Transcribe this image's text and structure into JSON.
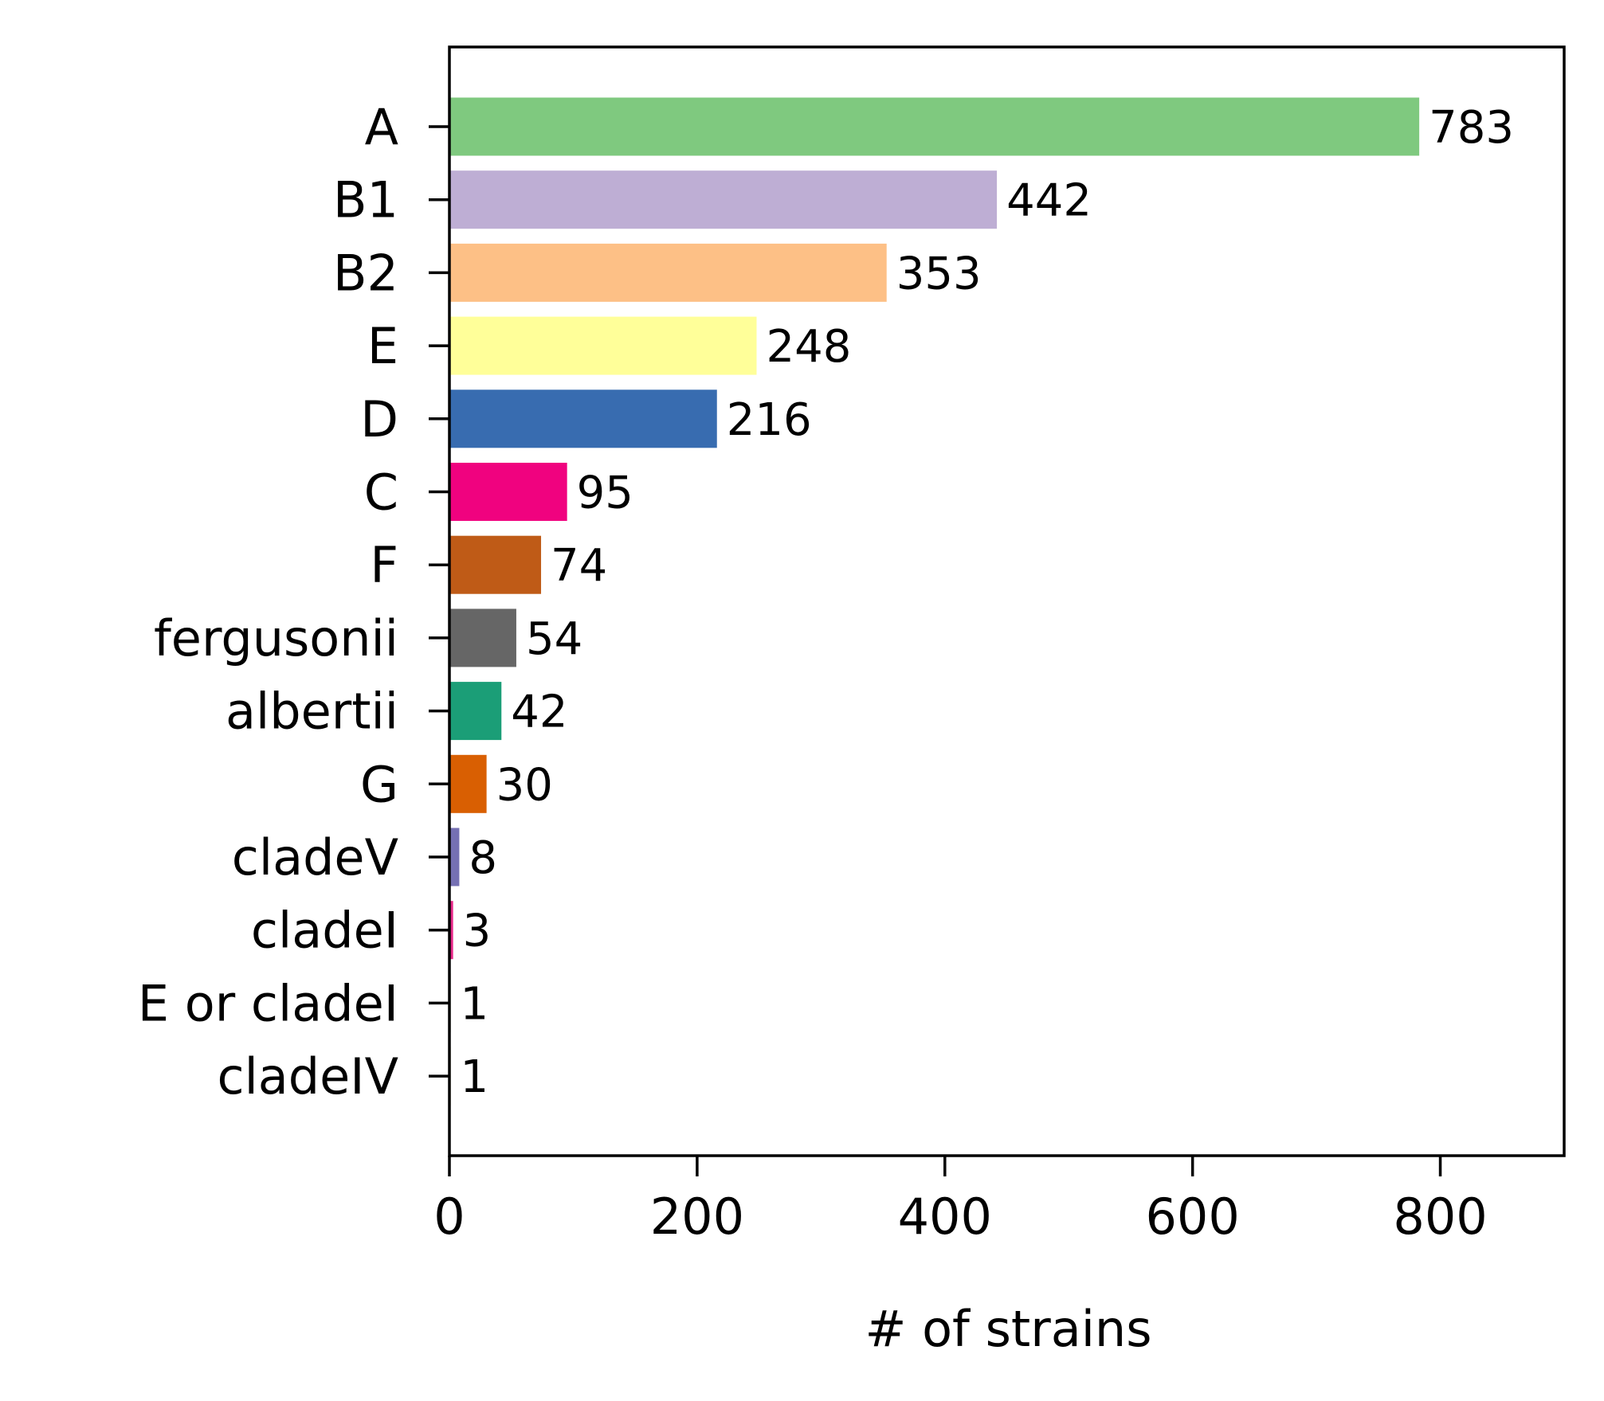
{
  "chart_data": {
    "type": "bar",
    "orientation": "horizontal",
    "categories": [
      "A",
      "B1",
      "B2",
      "E",
      "D",
      "C",
      "F",
      "fergusonii",
      "albertii",
      "G",
      "cladeV",
      "cladeI",
      "E or cladeI",
      "cladeIV"
    ],
    "values": [
      783,
      442,
      353,
      248,
      216,
      95,
      74,
      54,
      42,
      30,
      8,
      3,
      1,
      1
    ],
    "colors": [
      "#7fc97f",
      "#beaed4",
      "#fdc086",
      "#ffff99",
      "#386cb0",
      "#f0027f",
      "#bf5b17",
      "#666666",
      "#1b9e77",
      "#d95f02",
      "#7570b3",
      "#e7298a",
      "#66a61e",
      "#e6ab02"
    ],
    "xlabel": "# of strains",
    "ylabel": "",
    "title": "",
    "xlim": [
      0,
      900
    ],
    "xticks": [
      0,
      200,
      400,
      600,
      800
    ],
    "grid": false,
    "data_labels": true
  }
}
